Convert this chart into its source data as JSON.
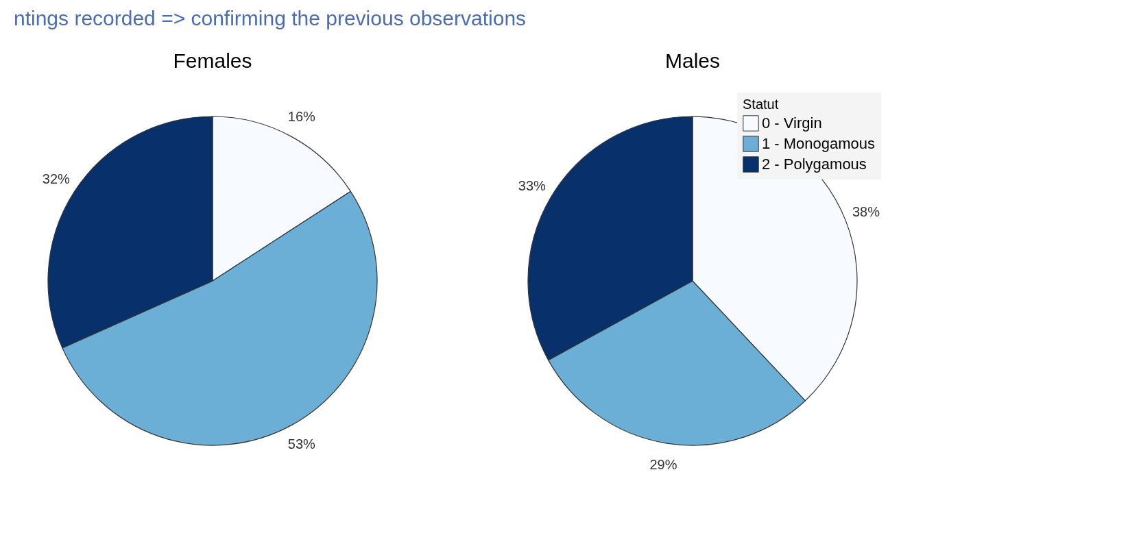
{
  "chart_data": [
    {
      "type": "pie",
      "title": "Females",
      "annotations": [
        "ntings recorded => confirming the previous observations"
      ],
      "categories": [
        null,
        null,
        null
      ],
      "values": [
        16,
        53,
        32
      ],
      "value_labels": [
        "16%",
        "53%",
        "32%"
      ],
      "colors": [
        "#f7fbff",
        "#6baed6",
        "#08306b"
      ]
    },
    {
      "type": "pie",
      "title": "Males",
      "categories": [
        "0 - Virgin",
        "1 - Monogamous",
        "2 - Polygamous"
      ],
      "values": [
        38,
        29,
        33
      ],
      "value_labels": [
        "38%",
        "29%",
        "33%"
      ],
      "colors": [
        "#f7fbff",
        "#6baed6",
        "#08306b"
      ],
      "legend": "top right",
      "legend_title": "Statut"
    }
  ]
}
